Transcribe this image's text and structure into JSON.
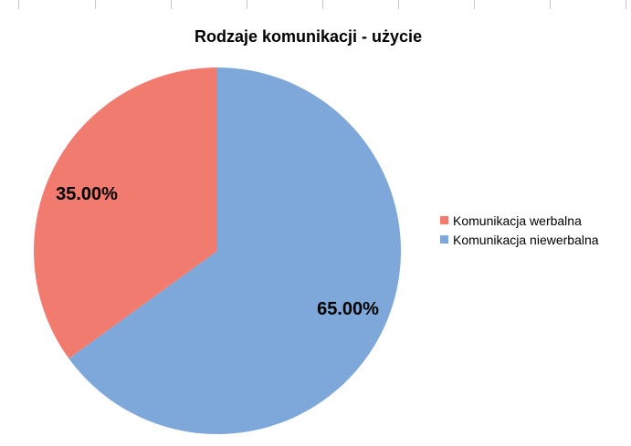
{
  "chart_data": {
    "type": "pie",
    "title": "Rodzaje komunikacji - użycie",
    "slices": [
      {
        "label": "Komunikacja werbalna",
        "value": 35.0,
        "display": "35.00%",
        "color": "#f27b70"
      },
      {
        "label": "Komunikacja niewerbalna",
        "value": 65.0,
        "display": "65.00%",
        "color": "#7ea8da"
      }
    ],
    "legend_position": "right"
  }
}
